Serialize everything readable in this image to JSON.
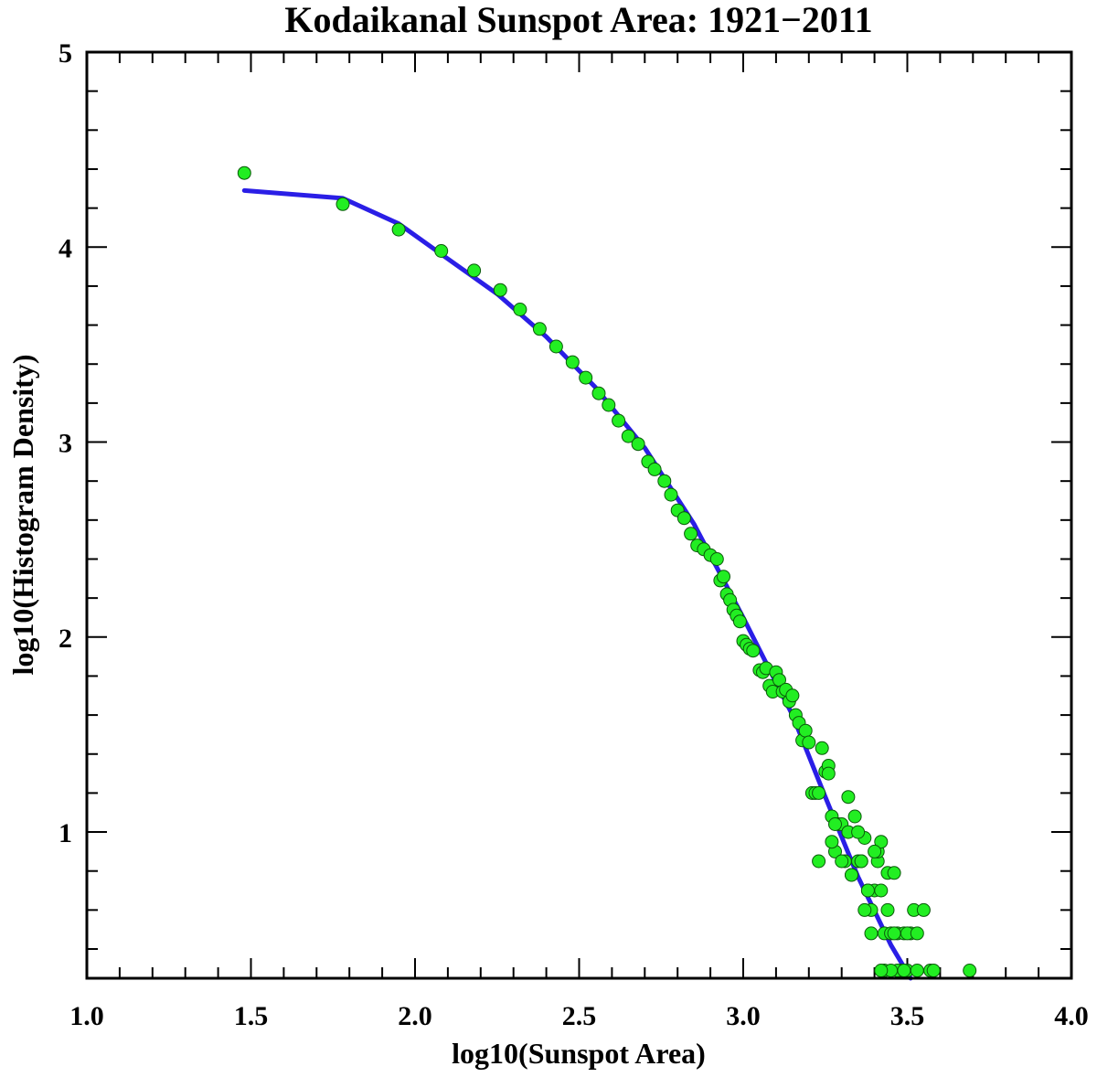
{
  "chart_data": {
    "type": "scatter",
    "title": "Kodaikanal Sunspot Area: 1921−2011",
    "xlabel": "log10(Sunspot Area)",
    "ylabel": "log10(Histogram Density)",
    "xlim": [
      1.0,
      4.0
    ],
    "ylim": [
      0.25,
      5.0
    ],
    "x_major_ticks": [
      1.0,
      1.5,
      2.0,
      2.5,
      3.0,
      3.5,
      4.0
    ],
    "x_tick_labels": [
      "1.0",
      "1.5",
      "2.0",
      "2.5",
      "3.0",
      "3.5",
      "4.0"
    ],
    "y_major_ticks": [
      1,
      2,
      3,
      4,
      5
    ],
    "y_tick_labels": [
      "1",
      "2",
      "3",
      "4",
      "5"
    ],
    "grid": false,
    "colors": {
      "points": "#22ee22",
      "point_edge": "#0a5a0a",
      "fit": "#2a1ee6",
      "axes": "#000000"
    },
    "series": [
      {
        "name": "data",
        "kind": "scatter",
        "x": [
          1.48,
          1.78,
          1.95,
          2.08,
          2.18,
          2.26,
          2.32,
          2.38,
          2.43,
          2.48,
          2.52,
          2.56,
          2.59,
          2.62,
          2.65,
          2.68,
          2.71,
          2.73,
          2.76,
          2.78,
          2.8,
          2.82,
          2.84,
          2.86,
          2.88,
          2.9,
          2.92,
          2.93,
          2.94,
          2.95,
          2.96,
          2.97,
          2.98,
          2.99,
          3.0,
          3.01,
          3.02,
          3.03,
          3.05,
          3.06,
          3.07,
          3.08,
          3.09,
          3.1,
          3.11,
          3.12,
          3.13,
          3.14,
          3.15,
          3.16,
          3.17,
          3.18,
          3.19,
          3.2,
          3.21,
          3.22,
          3.23,
          3.24,
          3.25,
          3.26,
          3.27,
          3.28,
          3.29,
          3.3,
          3.31,
          3.32,
          3.33,
          3.34,
          3.35,
          3.36,
          3.37,
          3.38,
          3.39,
          3.4,
          3.41,
          3.42,
          3.43,
          3.44,
          3.45,
          3.46,
          3.47,
          3.48,
          3.49,
          3.5,
          3.51,
          3.52,
          3.53,
          3.55,
          3.57,
          3.58,
          3.69,
          3.23,
          3.28,
          3.33,
          3.36,
          3.41,
          3.39,
          3.42,
          3.44,
          3.47,
          3.5,
          3.43,
          3.45,
          3.32,
          3.27,
          3.26,
          3.38,
          3.4,
          3.46,
          3.49,
          3.53,
          3.3,
          3.35,
          3.37,
          3.42
        ],
        "y": [
          4.38,
          4.22,
          4.09,
          3.98,
          3.88,
          3.78,
          3.68,
          3.58,
          3.49,
          3.41,
          3.33,
          3.25,
          3.19,
          3.11,
          3.03,
          2.99,
          2.9,
          2.86,
          2.8,
          2.73,
          2.65,
          2.61,
          2.53,
          2.47,
          2.45,
          2.42,
          2.4,
          2.29,
          2.31,
          2.22,
          2.19,
          2.14,
          2.11,
          2.08,
          1.98,
          1.96,
          1.94,
          1.93,
          1.83,
          1.82,
          1.84,
          1.75,
          1.72,
          1.82,
          1.78,
          1.72,
          1.73,
          1.67,
          1.7,
          1.6,
          1.56,
          1.47,
          1.52,
          1.46,
          1.2,
          1.2,
          0.85,
          1.43,
          1.31,
          1.34,
          1.08,
          0.9,
          1.04,
          1.04,
          0.85,
          1.18,
          0.78,
          1.08,
          0.85,
          0.85,
          0.97,
          0.7,
          0.6,
          0.7,
          0.85,
          0.7,
          0.48,
          0.79,
          0.48,
          0.79,
          0.48,
          0.29,
          0.48,
          0.29,
          0.48,
          0.6,
          0.29,
          0.6,
          0.29,
          0.29,
          0.29,
          1.2,
          1.04,
          0.78,
          0.85,
          0.9,
          0.48,
          0.95,
          0.6,
          0.29,
          0.48,
          0.29,
          0.29,
          1.0,
          0.95,
          1.3,
          0.7,
          0.9,
          0.48,
          0.29,
          0.48,
          0.85,
          1.0,
          0.6,
          0.29
        ]
      },
      {
        "name": "fit",
        "kind": "line",
        "x": [
          1.48,
          1.78,
          1.95,
          2.1,
          2.25,
          2.4,
          2.55,
          2.7,
          2.85,
          3.0,
          3.15,
          3.25,
          3.35,
          3.45,
          3.51
        ],
        "y": [
          4.29,
          4.25,
          4.12,
          3.94,
          3.76,
          3.54,
          3.28,
          2.97,
          2.58,
          2.1,
          1.6,
          1.18,
          0.77,
          0.42,
          0.25
        ]
      }
    ]
  }
}
